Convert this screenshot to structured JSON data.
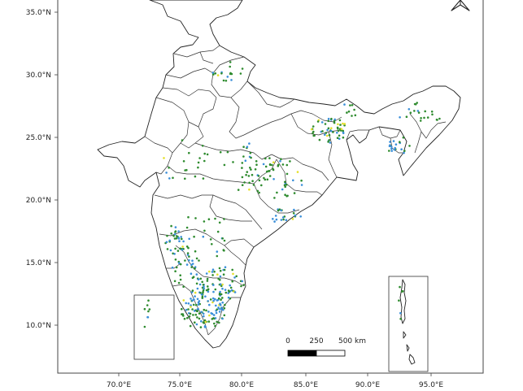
{
  "axes": {
    "lat_labels": [
      "35.0°N",
      "30.0°N",
      "25.0°N",
      "20.0°N",
      "15.0°N",
      "10.0°N"
    ],
    "lon_labels": [
      "70.0°E",
      "75.0°E",
      "80.0°E",
      "85.0°E",
      "90.0°E",
      "95.0°E"
    ]
  },
  "scale_bar": {
    "labels": [
      "0",
      "250",
      "500 km"
    ]
  },
  "colors": {
    "point_green": "#2e8b2e",
    "point_blue": "#3a8fd9",
    "point_yellow": "#e5e02a",
    "boundary": "#333333"
  },
  "icons": {
    "north_arrow": "north-arrow-icon"
  }
}
